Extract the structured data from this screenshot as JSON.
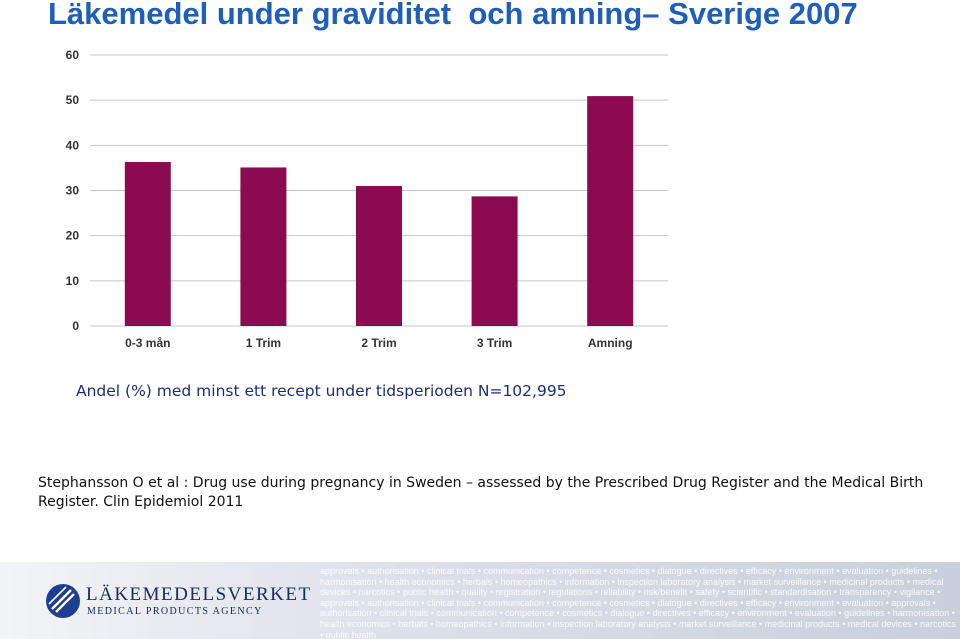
{
  "page": {
    "title": "Läkemedel under graviditet  och amning– Sverige 2007",
    "caption": "Andel (%) med minst ett recept under tidsperioden N=102,995",
    "reference": "Stephansson O et al : Drug use during pregnancy in Sweden – assessed by the Prescribed Drug Register and the Medical Birth Register. Clin Epidemiol 2011"
  },
  "chart_data": {
    "type": "bar",
    "categories": [
      "0-3 mån",
      "1 Trim",
      "2 Trim",
      "3 Trim",
      "Amning"
    ],
    "values": [
      36.3,
      35.1,
      31.0,
      28.7,
      50.9
    ],
    "ylim": [
      0,
      60
    ],
    "yticks": [
      0,
      10,
      20,
      30,
      40,
      50,
      60
    ],
    "grid": true,
    "bar_color": "#8b0a50"
  },
  "footer": {
    "logo_name": "LÄKEMEDELSVERKET",
    "logo_sub": "MEDICAL PRODUCTS AGENCY",
    "word_cloud": "approvals • authorisation • clinical trials • communication • competence • cosmetics • dialogue • directives • efficacy • environment • evaluation • guidelines • harmonisation • health economics • herbals • homeopathics • information • inspection laboratory analysis • market surveillance • medicinal products • medical devices • narcotics • public health • quality • registration • regulations • reliability • risk/benefit • safety • scientific • standardisation • transparency • vigilance • approvals • authorisation • clinical trials • communication • competence • cosmetics • dialogue • directives • efficacy • environment • evaluation • approvals • authorisation • clinical trials • communication • competence • cosmetics • dialogue • directives • efficacy • environment • evaluation • guidelines • harmonisation • health economics • herbals • homeopathics • information • inspection laboratory analysis • market surveillance • medicinal products • medical devices • narcotics • public health"
  }
}
